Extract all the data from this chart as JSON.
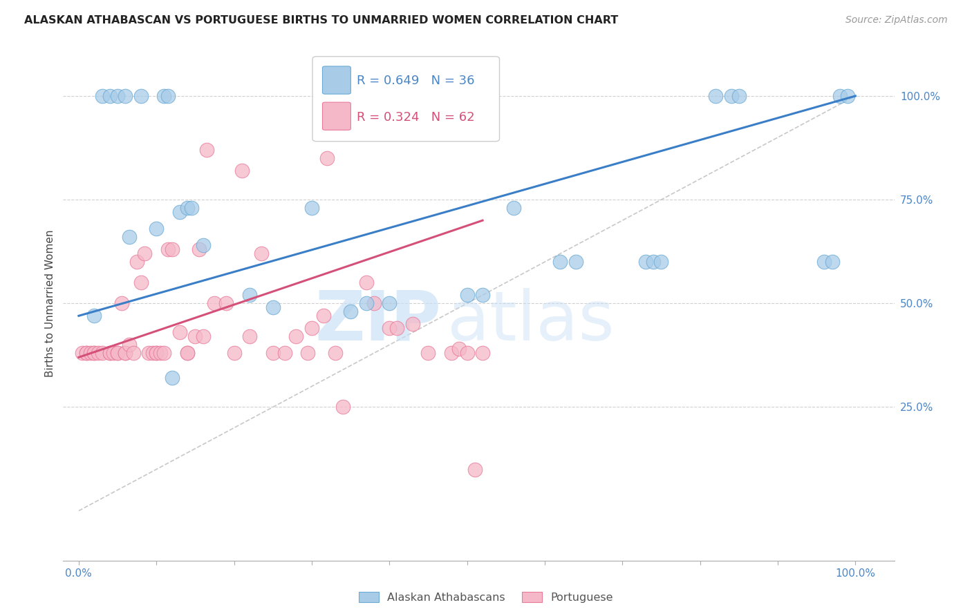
{
  "title": "ALASKAN ATHABASCAN VS PORTUGUESE BIRTHS TO UNMARRIED WOMEN CORRELATION CHART",
  "source": "Source: ZipAtlas.com",
  "ylabel": "Births to Unmarried Women",
  "ytick_labels": [
    "25.0%",
    "50.0%",
    "75.0%",
    "100.0%"
  ],
  "ytick_values": [
    0.25,
    0.5,
    0.75,
    1.0
  ],
  "legend_labels": [
    "Alaskan Athabascans",
    "Portuguese"
  ],
  "legend_r": [
    0.649,
    0.324
  ],
  "legend_n": [
    36,
    62
  ],
  "blue_color": "#a8cce8",
  "blue_edge_color": "#6aaad4",
  "pink_color": "#f5b8c8",
  "pink_edge_color": "#e87a9a",
  "blue_line_color": "#3a7ec8",
  "pink_line_color": "#d45078",
  "diag_color": "#c8c8c8",
  "blue_r_label": "R = 0.649",
  "blue_n_label": "N = 36",
  "pink_r_label": "R = 0.324",
  "pink_n_label": "N = 62",
  "blue_r_color": "#4a86c8",
  "pink_r_color": "#d45078",
  "watermark_zip": "ZIP",
  "watermark_atlas": "atlas",
  "blue_dots_x": [
    0.02,
    0.03,
    0.04,
    0.05,
    0.06,
    0.065,
    0.08,
    0.1,
    0.11,
    0.115,
    0.12,
    0.13,
    0.14,
    0.145,
    0.16,
    0.22,
    0.25,
    0.3,
    0.35,
    0.37,
    0.4,
    0.5,
    0.52,
    0.56,
    0.62,
    0.64,
    0.73,
    0.74,
    0.75,
    0.82,
    0.84,
    0.85,
    0.96,
    0.97,
    0.98,
    0.99
  ],
  "blue_dots_y": [
    0.47,
    1.0,
    1.0,
    1.0,
    1.0,
    0.66,
    1.0,
    0.68,
    1.0,
    1.0,
    0.32,
    0.72,
    0.73,
    0.73,
    0.64,
    0.52,
    0.49,
    0.73,
    0.48,
    0.5,
    0.5,
    0.52,
    0.52,
    0.73,
    0.6,
    0.6,
    0.6,
    0.6,
    0.6,
    1.0,
    1.0,
    1.0,
    0.6,
    0.6,
    1.0,
    1.0
  ],
  "pink_dots_x": [
    0.005,
    0.01,
    0.01,
    0.015,
    0.02,
    0.02,
    0.025,
    0.03,
    0.04,
    0.04,
    0.045,
    0.05,
    0.05,
    0.055,
    0.06,
    0.06,
    0.065,
    0.07,
    0.075,
    0.08,
    0.085,
    0.09,
    0.095,
    0.1,
    0.1,
    0.105,
    0.11,
    0.115,
    0.12,
    0.13,
    0.14,
    0.14,
    0.15,
    0.155,
    0.16,
    0.165,
    0.175,
    0.19,
    0.2,
    0.21,
    0.22,
    0.235,
    0.25,
    0.265,
    0.28,
    0.295,
    0.3,
    0.315,
    0.32,
    0.33,
    0.34,
    0.37,
    0.38,
    0.4,
    0.41,
    0.43,
    0.45,
    0.48,
    0.49,
    0.5,
    0.51,
    0.52
  ],
  "pink_dots_y": [
    0.38,
    0.38,
    0.38,
    0.38,
    0.38,
    0.38,
    0.38,
    0.38,
    0.38,
    0.38,
    0.38,
    0.38,
    0.38,
    0.5,
    0.38,
    0.38,
    0.4,
    0.38,
    0.6,
    0.55,
    0.62,
    0.38,
    0.38,
    0.38,
    0.38,
    0.38,
    0.38,
    0.63,
    0.63,
    0.43,
    0.38,
    0.38,
    0.42,
    0.63,
    0.42,
    0.87,
    0.5,
    0.5,
    0.38,
    0.82,
    0.42,
    0.62,
    0.38,
    0.38,
    0.42,
    0.38,
    0.44,
    0.47,
    0.85,
    0.38,
    0.25,
    0.55,
    0.5,
    0.44,
    0.44,
    0.45,
    0.38,
    0.38,
    0.39,
    0.38,
    0.1,
    0.38
  ],
  "xlim": [
    -0.02,
    1.05
  ],
  "ylim": [
    -0.12,
    1.12
  ],
  "blue_trend_x": [
    0.0,
    1.0
  ],
  "blue_trend_y": [
    0.47,
    1.0
  ],
  "pink_trend_x": [
    0.0,
    0.52
  ],
  "pink_trend_y": [
    0.37,
    0.7
  ]
}
